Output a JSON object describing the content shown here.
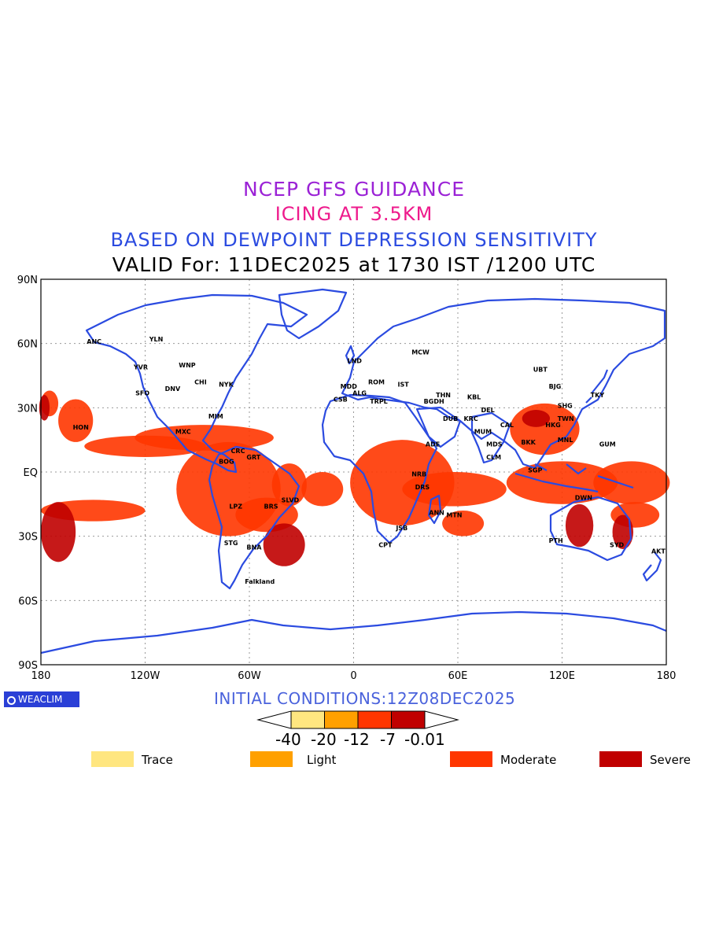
{
  "titles": {
    "line1": "NCEP GFS GUIDANCE",
    "line2": "ICING AT 3.5KM",
    "line3": "BASED ON DEWPOINT DEPRESSION SENSITIVITY",
    "line4": "VALID For: 11DEC2025 at 1730 IST /1200 UTC"
  },
  "colors": {
    "line1": "#9b22d6",
    "line2": "#ee1a8c",
    "line3": "#2b4be0",
    "coast": "#2b4be0",
    "trace": "#ffe680",
    "light": "#ffa000",
    "moderate": "#ff3600",
    "severe": "#c00000",
    "grid": "#999999"
  },
  "axes": {
    "lat_labels": [
      "90N",
      "60N",
      "30N",
      "EQ",
      "30S",
      "60S",
      "90S"
    ],
    "lon_labels": [
      "180",
      "120W",
      "60W",
      "0",
      "60E",
      "120E",
      "180"
    ]
  },
  "stations": [
    {
      "code": "ANC",
      "lon": -150,
      "lat": 61
    },
    {
      "code": "YLN",
      "lon": -114,
      "lat": 62
    },
    {
      "code": "YVR",
      "lon": -123,
      "lat": 49
    },
    {
      "code": "WNP",
      "lon": -97,
      "lat": 50
    },
    {
      "code": "SFO",
      "lon": -122,
      "lat": 37
    },
    {
      "code": "DNV",
      "lon": -105,
      "lat": 39
    },
    {
      "code": "CHI",
      "lon": -88,
      "lat": 42
    },
    {
      "code": "NYK",
      "lon": -74,
      "lat": 41
    },
    {
      "code": "MIM",
      "lon": -80,
      "lat": 26
    },
    {
      "code": "HON",
      "lon": -158,
      "lat": 21
    },
    {
      "code": "MXC",
      "lon": -99,
      "lat": 19
    },
    {
      "code": "CRC",
      "lon": -67,
      "lat": 10
    },
    {
      "code": "BOG",
      "lon": -74,
      "lat": 5
    },
    {
      "code": "GRT",
      "lon": -58,
      "lat": 7
    },
    {
      "code": "LPZ",
      "lon": -68,
      "lat": -16
    },
    {
      "code": "BRS",
      "lon": -48,
      "lat": -16
    },
    {
      "code": "SLVD",
      "lon": -38,
      "lat": -13
    },
    {
      "code": "STG",
      "lon": -71,
      "lat": -33
    },
    {
      "code": "BNA",
      "lon": -58,
      "lat": -35
    },
    {
      "code": "Falkland",
      "lon": -59,
      "lat": -51
    },
    {
      "code": "LND",
      "lon": 0,
      "lat": 52
    },
    {
      "code": "MDD",
      "lon": -4,
      "lat": 40
    },
    {
      "code": "CSB",
      "lon": -8,
      "lat": 34
    },
    {
      "code": "ALG",
      "lon": 3,
      "lat": 37
    },
    {
      "code": "ROM",
      "lon": 12,
      "lat": 42
    },
    {
      "code": "IST",
      "lon": 29,
      "lat": 41
    },
    {
      "code": "TRPL",
      "lon": 13,
      "lat": 33
    },
    {
      "code": "MCW",
      "lon": 37,
      "lat": 56
    },
    {
      "code": "BGDH",
      "lon": 44,
      "lat": 33
    },
    {
      "code": "THN",
      "lon": 51,
      "lat": 36
    },
    {
      "code": "KBL",
      "lon": 69,
      "lat": 35
    },
    {
      "code": "DUB",
      "lon": 55,
      "lat": 25
    },
    {
      "code": "KRC",
      "lon": 67,
      "lat": 25
    },
    {
      "code": "DEL",
      "lon": 77,
      "lat": 29
    },
    {
      "code": "MUM",
      "lon": 73,
      "lat": 19
    },
    {
      "code": "CAL",
      "lon": 88,
      "lat": 22
    },
    {
      "code": "MDS",
      "lon": 80,
      "lat": 13
    },
    {
      "code": "CLM",
      "lon": 80,
      "lat": 7
    },
    {
      "code": "ADE",
      "lon": 45,
      "lat": 13
    },
    {
      "code": "NRB",
      "lon": 37,
      "lat": -1
    },
    {
      "code": "DRS",
      "lon": 39,
      "lat": -7
    },
    {
      "code": "ANN",
      "lon": 47,
      "lat": -19
    },
    {
      "code": "MTN",
      "lon": 57,
      "lat": -20
    },
    {
      "code": "JSB",
      "lon": 28,
      "lat": -26
    },
    {
      "code": "CPT",
      "lon": 18,
      "lat": -34
    },
    {
      "code": "UBT",
      "lon": 107,
      "lat": 48
    },
    {
      "code": "BJG",
      "lon": 116,
      "lat": 40
    },
    {
      "code": "SHG",
      "lon": 121,
      "lat": 31
    },
    {
      "code": "TKY",
      "lon": 140,
      "lat": 36
    },
    {
      "code": "TWN",
      "lon": 121,
      "lat": 25
    },
    {
      "code": "HKG",
      "lon": 114,
      "lat": 22
    },
    {
      "code": "MNL",
      "lon": 121,
      "lat": 15
    },
    {
      "code": "BKK",
      "lon": 100,
      "lat": 14
    },
    {
      "code": "SGP",
      "lon": 104,
      "lat": 1
    },
    {
      "code": "GUM",
      "lon": 145,
      "lat": 13
    },
    {
      "code": "DWN",
      "lon": 131,
      "lat": -12
    },
    {
      "code": "PTH",
      "lon": 116,
      "lat": -32
    },
    {
      "code": "SYD",
      "lon": 151,
      "lat": -34
    },
    {
      "code": "AKT",
      "lon": 175,
      "lat": -37
    }
  ],
  "icing_regions": [
    {
      "category": "moderate",
      "lon": -18,
      "lat": -8,
      "w": 12,
      "h": 8
    },
    {
      "category": "moderate",
      "lon": -86,
      "lat": 16,
      "w": 40,
      "h": 6
    },
    {
      "category": "moderate",
      "lon": -72,
      "lat": -8,
      "w": 30,
      "h": 22
    },
    {
      "category": "moderate",
      "lon": -50,
      "lat": -20,
      "w": 18,
      "h": 8
    },
    {
      "category": "moderate",
      "lon": -37,
      "lat": -6,
      "w": 10,
      "h": 10
    },
    {
      "category": "moderate",
      "lon": -150,
      "lat": -18,
      "w": 30,
      "h": 5
    },
    {
      "category": "moderate",
      "lon": -120,
      "lat": 12,
      "w": 35,
      "h": 5
    },
    {
      "category": "moderate",
      "lon": -160,
      "lat": 24,
      "w": 10,
      "h": 10
    },
    {
      "category": "moderate",
      "lon": 28,
      "lat": -5,
      "w": 30,
      "h": 20
    },
    {
      "category": "moderate",
      "lon": 58,
      "lat": -8,
      "w": 30,
      "h": 8
    },
    {
      "category": "moderate",
      "lon": 120,
      "lat": -5,
      "w": 32,
      "h": 10
    },
    {
      "category": "moderate",
      "lon": 160,
      "lat": -5,
      "w": 22,
      "h": 10
    },
    {
      "category": "moderate",
      "lon": 110,
      "lat": 20,
      "w": 20,
      "h": 12
    },
    {
      "category": "moderate",
      "lon": 63,
      "lat": -24,
      "w": 12,
      "h": 6
    },
    {
      "category": "moderate",
      "lon": -175,
      "lat": 32,
      "w": 5,
      "h": 6
    },
    {
      "category": "moderate",
      "lon": 162,
      "lat": -20,
      "w": 14,
      "h": 6
    },
    {
      "category": "severe",
      "lon": -170,
      "lat": -28,
      "w": 10,
      "h": 14
    },
    {
      "category": "severe",
      "lon": -40,
      "lat": -34,
      "w": 12,
      "h": 10
    },
    {
      "category": "severe",
      "lon": -178,
      "lat": 30,
      "w": 3,
      "h": 6
    },
    {
      "category": "severe",
      "lon": 105,
      "lat": 25,
      "w": 8,
      "h": 4
    },
    {
      "category": "severe",
      "lon": 130,
      "lat": -25,
      "w": 8,
      "h": 10
    },
    {
      "category": "severe",
      "lon": 155,
      "lat": -28,
      "w": 6,
      "h": 8
    }
  ],
  "initial_conditions": "INITIAL CONDITIONS:12Z08DEC2025",
  "colorbar": {
    "ticks": [
      "-40",
      "-20",
      "-12",
      "-7",
      "-0.01"
    ],
    "colors": [
      "#ffe680",
      "#ffa000",
      "#ff3600",
      "#c00000"
    ]
  },
  "legend": [
    {
      "label": "Trace",
      "color": "#ffe680"
    },
    {
      "label": "Light",
      "color": "#ffa000"
    },
    {
      "label": "Moderate",
      "color": "#ff3600"
    },
    {
      "label": "Severe",
      "color": "#c00000"
    }
  ],
  "logo": "WEACLIM"
}
